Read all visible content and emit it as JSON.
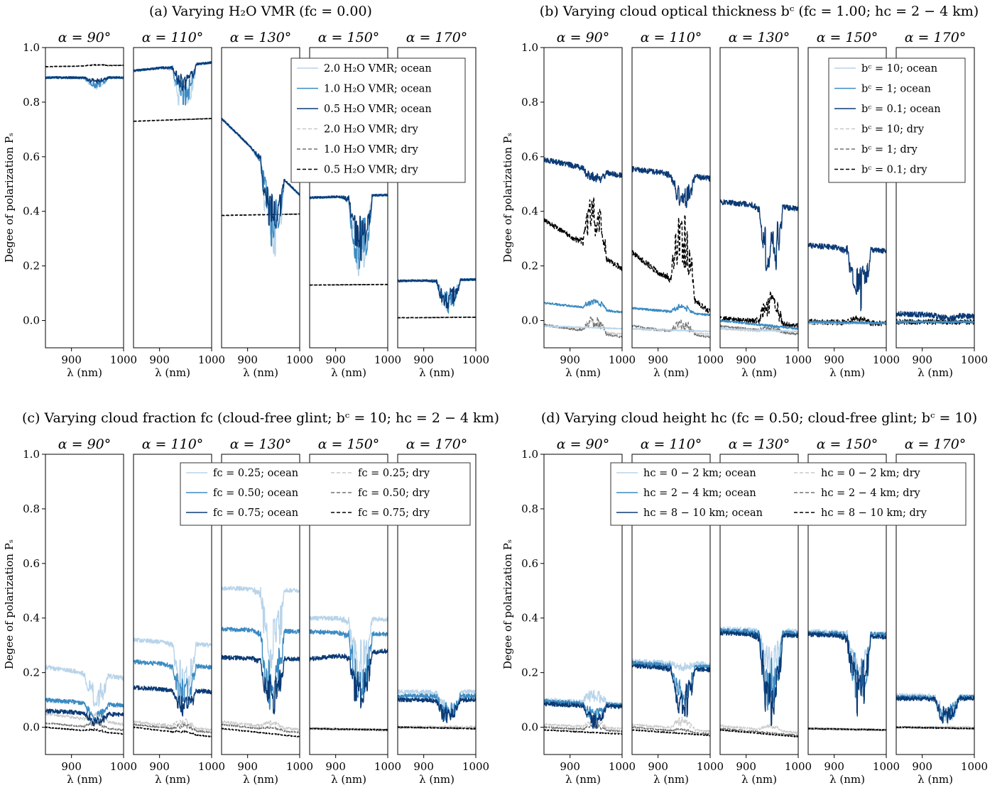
{
  "figure": {
    "panels": [
      {
        "id": "a",
        "title": "(a) Varying H₂O VMR (fᴄ = 0.00)",
        "ylabel": "Degee of polarization Pₛ",
        "xlabel": "λ (nm)",
        "legend": {
          "columns": 1,
          "entries": [
            "2.0 H₂O VMR; ocean",
            "1.0 H₂O VMR; ocean",
            "0.5 H₂O VMR; ocean",
            "2.0 H₂O VMR; dry",
            "1.0 H₂O VMR; dry",
            "0.5 H₂O VMR; dry"
          ]
        }
      },
      {
        "id": "b",
        "title": "(b) Varying cloud optical thickness bᶜ (fᴄ = 1.00; hᴄ = 2 − 4 km)",
        "ylabel": "Degee of polarization Pₛ",
        "xlabel": "λ (nm)",
        "legend": {
          "columns": 1,
          "entries": [
            "bᶜ = 10; ocean",
            "bᶜ = 1; ocean",
            "bᶜ = 0.1; ocean",
            "bᶜ = 10; dry",
            "bᶜ = 1; dry",
            "bᶜ = 0.1; dry"
          ]
        }
      },
      {
        "id": "c",
        "title": "(c) Varying cloud fraction fᴄ (cloud-free glint; bᶜ = 10; hᴄ = 2 − 4 km)",
        "ylabel": "Degee of polarization Pₛ",
        "xlabel": "λ (nm)",
        "legend": {
          "columns": 2,
          "entries": [
            "fᴄ = 0.25; ocean",
            "fᴄ = 0.50; ocean",
            "fᴄ = 0.75; ocean",
            "fᴄ = 0.25; dry",
            "fᴄ = 0.50; dry",
            "fᴄ = 0.75; dry"
          ]
        }
      },
      {
        "id": "d",
        "title": "(d) Varying cloud height hᴄ (fᴄ = 0.50; cloud-free glint; bᶜ = 10)",
        "ylabel": "Degee of polarization Pₛ",
        "xlabel": "λ (nm)",
        "legend": {
          "columns": 2,
          "entries": [
            "hᴄ = 0 − 2 km; ocean",
            "hᴄ = 2 − 4 km; ocean",
            "hᴄ = 8 − 10 km; ocean",
            "hᴄ = 0 − 2 km; dry",
            "hᴄ = 2 − 4 km; dry",
            "hᴄ = 8 − 10 km; dry"
          ]
        }
      }
    ]
  },
  "chart_data": {
    "type": "line",
    "subplot_titles": [
      "α = 90°",
      "α = 110°",
      "α = 130°",
      "α = 150°",
      "α = 170°"
    ],
    "xlim": [
      850,
      1000
    ],
    "xticks": [
      900,
      1000
    ],
    "ylim": [
      -0.1,
      1.0
    ],
    "yticks": [
      0.0,
      0.2,
      0.4,
      0.6,
      0.8,
      1.0
    ],
    "absorption_band_nm": [
      925,
      970
    ],
    "series_styles": [
      {
        "color": "#b8d4ea",
        "dash": "none"
      },
      {
        "color": "#3b8bc2",
        "dash": "none"
      },
      {
        "color": "#0b3a75",
        "dash": "none"
      },
      {
        "color": "#c8c8c8",
        "dash": "5,3"
      },
      {
        "color": "#707070",
        "dash": "5,3"
      },
      {
        "color": "#000000",
        "dash": "5,3"
      }
    ],
    "panels": [
      {
        "id": "a",
        "series": [
          {
            "continuum": [
              [
                0.89,
                0.89
              ],
              [
                0.915,
                0.945
              ],
              [
                0.74,
                0.46
              ],
              [
                0.45,
                0.46
              ],
              [
                0.145,
                0.15
              ]
            ],
            "dip": [
              0.04,
              0.18,
              0.34,
              0.3,
              0.13
            ],
            "noise": 0.004
          },
          {
            "continuum": [
              [
                0.89,
                0.89
              ],
              [
                0.915,
                0.945
              ],
              [
                0.74,
                0.46
              ],
              [
                0.45,
                0.46
              ],
              [
                0.145,
                0.15
              ]
            ],
            "dip": [
              0.035,
              0.15,
              0.3,
              0.28,
              0.12
            ],
            "noise": 0.004
          },
          {
            "continuum": [
              [
                0.89,
                0.89
              ],
              [
                0.915,
                0.945
              ],
              [
                0.74,
                0.46
              ],
              [
                0.45,
                0.46
              ],
              [
                0.145,
                0.15
              ]
            ],
            "dip": [
              0.02,
              0.1,
              0.25,
              0.24,
              0.11
            ],
            "noise": 0.004
          },
          {
            "continuum": [
              [
                0.93,
                0.935
              ],
              [
                0.73,
                0.74
              ],
              [
                0.385,
                0.39
              ],
              [
                0.13,
                0.132
              ],
              [
                0.01,
                0.012
              ]
            ],
            "dip": [
              -0.005,
              0,
              0,
              0,
              0
            ],
            "noise": 0.001
          },
          {
            "continuum": [
              [
                0.93,
                0.935
              ],
              [
                0.73,
                0.74
              ],
              [
                0.385,
                0.39
              ],
              [
                0.13,
                0.132
              ],
              [
                0.01,
                0.012
              ]
            ],
            "dip": [
              -0.005,
              0,
              0,
              0,
              0
            ],
            "noise": 0.001
          },
          {
            "continuum": [
              [
                0.93,
                0.935
              ],
              [
                0.73,
                0.74
              ],
              [
                0.385,
                0.39
              ],
              [
                0.13,
                0.132
              ],
              [
                0.01,
                0.012
              ]
            ],
            "dip": [
              -0.005,
              0,
              0,
              0,
              0
            ],
            "noise": 0.001
          }
        ]
      },
      {
        "id": "b",
        "series": [
          {
            "continuum": [
              [
                -0.02,
                -0.03
              ],
              [
                -0.03,
                -0.04
              ],
              [
                -0.03,
                -0.04
              ],
              [
                -0.01,
                -0.01
              ],
              [
                -0.005,
                -0.005
              ]
            ],
            "dip": [
              0,
              0,
              0,
              0,
              0
            ],
            "noise": 0.002
          },
          {
            "continuum": [
              [
                0.065,
                0.03
              ],
              [
                0.045,
                0.02
              ],
              [
                0.0,
                -0.03
              ],
              [
                -0.005,
                -0.01
              ],
              [
                -0.005,
                -0.005
              ]
            ],
            "dip": [
              -0.04,
              -0.03,
              0,
              0,
              0
            ],
            "noise": 0.004
          },
          {
            "continuum": [
              [
                0.59,
                0.53
              ],
              [
                0.555,
                0.52
              ],
              [
                0.435,
                0.41
              ],
              [
                0.275,
                0.255
              ],
              [
                0.025,
                0.015
              ]
            ],
            "dip": [
              0.05,
              0.13,
              0.28,
              0.23,
              0.015
            ],
            "noise": 0.01
          },
          {
            "continuum": [
              [
                -0.02,
                -0.05
              ],
              [
                -0.03,
                -0.05
              ],
              [
                -0.03,
                -0.05
              ],
              [
                -0.01,
                -0.01
              ],
              [
                -0.005,
                -0.005
              ]
            ],
            "dip": [
              -0.05,
              -0.03,
              -0.015,
              0,
              0
            ],
            "noise": 0.003
          },
          {
            "continuum": [
              [
                -0.015,
                -0.06
              ],
              [
                -0.02,
                -0.06
              ],
              [
                -0.02,
                -0.05
              ],
              [
                -0.01,
                -0.01
              ],
              [
                -0.005,
                -0.005
              ]
            ],
            "dip": [
              -0.06,
              -0.05,
              -0.02,
              -0.005,
              0
            ],
            "noise": 0.004
          },
          {
            "continuum": [
              [
                0.37,
                0.19
              ],
              [
                0.25,
                0.03
              ],
              [
                0.01,
                -0.02
              ],
              [
                -0.005,
                -0.01
              ],
              [
                -0.005,
                -0.005
              ]
            ],
            "dip": [
              -0.22,
              -0.3,
              -0.11,
              -0.02,
              0
            ],
            "noise": 0.01
          }
        ]
      },
      {
        "id": "c",
        "series": [
          {
            "continuum": [
              [
                0.22,
                0.18
              ],
              [
                0.32,
                0.3
              ],
              [
                0.51,
                0.5
              ],
              [
                0.4,
                0.395
              ],
              [
                0.13,
                0.13
              ]
            ],
            "dip": [
              0.12,
              0.2,
              0.32,
              0.24,
              0.11
            ],
            "noise": 0.008
          },
          {
            "continuum": [
              [
                0.1,
                0.08
              ],
              [
                0.24,
                0.22
              ],
              [
                0.36,
                0.35
              ],
              [
                0.35,
                0.34
              ],
              [
                0.115,
                0.115
              ]
            ],
            "dip": [
              0.07,
              0.17,
              0.3,
              0.25,
              0.1
            ],
            "noise": 0.008
          },
          {
            "continuum": [
              [
                0.06,
                0.045
              ],
              [
                0.145,
                0.13
              ],
              [
                0.255,
                0.25
              ],
              [
                0.25,
                0.28
              ],
              [
                0.1,
                0.1
              ]
            ],
            "dip": [
              0.04,
              0.1,
              0.22,
              0.21,
              0.09
            ],
            "noise": 0.008
          },
          {
            "continuum": [
              [
                0.05,
                0.01
              ],
              [
                0.02,
                -0.01
              ],
              [
                0.02,
                -0.01
              ],
              [
                -0.005,
                -0.01
              ],
              [
                0,
                0
              ]
            ],
            "dip": [
              -0.04,
              -0.03,
              -0.02,
              0,
              0
            ],
            "noise": 0.005
          },
          {
            "continuum": [
              [
                0.015,
                -0.01
              ],
              [
                0.01,
                -0.02
              ],
              [
                0.01,
                -0.02
              ],
              [
                -0.005,
                -0.01
              ],
              [
                0,
                -0.005
              ]
            ],
            "dip": [
              -0.02,
              -0.02,
              -0.01,
              0,
              0
            ],
            "noise": 0.003
          },
          {
            "continuum": [
              [
                0.0,
                -0.025
              ],
              [
                0.0,
                -0.035
              ],
              [
                -0.005,
                -0.035
              ],
              [
                -0.005,
                -0.01
              ],
              [
                0,
                -0.005
              ]
            ],
            "dip": [
              -0.01,
              -0.01,
              0,
              0,
              0
            ],
            "noise": 0.002
          }
        ]
      },
      {
        "id": "d",
        "series": [
          {
            "continuum": [
              [
                0.1,
                0.08
              ],
              [
                0.24,
                0.23
              ],
              [
                0.36,
                0.35
              ],
              [
                0.35,
                0.34
              ],
              [
                0.115,
                0.11
              ]
            ],
            "dip": [
              -0.05,
              0.02,
              0.2,
              0.2,
              0.1
            ],
            "noise": 0.01
          },
          {
            "continuum": [
              [
                0.095,
                0.08
              ],
              [
                0.235,
                0.22
              ],
              [
                0.355,
                0.345
              ],
              [
                0.345,
                0.34
              ],
              [
                0.11,
                0.11
              ]
            ],
            "dip": [
              0.06,
              0.15,
              0.3,
              0.28,
              0.1
            ],
            "noise": 0.008
          },
          {
            "continuum": [
              [
                0.085,
                0.075
              ],
              [
                0.225,
                0.21
              ],
              [
                0.345,
                0.335
              ],
              [
                0.34,
                0.33
              ],
              [
                0.105,
                0.105
              ]
            ],
            "dip": [
              0.08,
              0.2,
              0.34,
              0.3,
              0.1
            ],
            "noise": 0.008
          },
          {
            "continuum": [
              [
                0.01,
                -0.005
              ],
              [
                0.01,
                -0.015
              ],
              [
                0.005,
                -0.02
              ],
              [
                -0.005,
                -0.01
              ],
              [
                0,
                0
              ]
            ],
            "dip": [
              -0.03,
              -0.04,
              -0.02,
              0,
              0
            ],
            "noise": 0.004
          },
          {
            "continuum": [
              [
                0.0,
                -0.015
              ],
              [
                0.0,
                -0.025
              ],
              [
                -0.005,
                -0.03
              ],
              [
                -0.005,
                -0.01
              ],
              [
                0,
                -0.005
              ]
            ],
            "dip": [
              -0.02,
              -0.01,
              0,
              0,
              0
            ],
            "noise": 0.003
          },
          {
            "continuum": [
              [
                -0.01,
                -0.025
              ],
              [
                -0.01,
                -0.03
              ],
              [
                -0.01,
                -0.035
              ],
              [
                -0.005,
                -0.01
              ],
              [
                0,
                -0.005
              ]
            ],
            "dip": [
              0,
              0,
              0,
              0,
              0
            ],
            "noise": 0.002
          }
        ]
      }
    ]
  }
}
